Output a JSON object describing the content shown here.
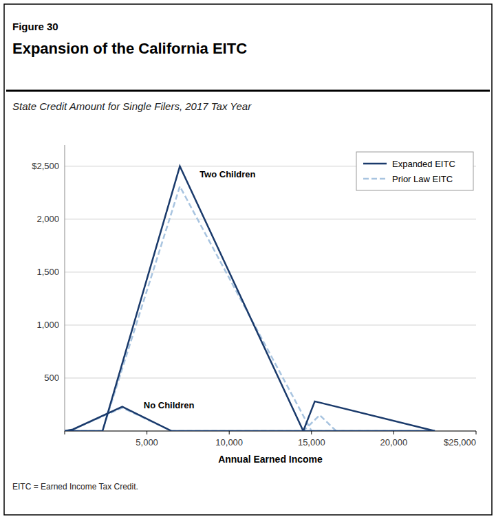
{
  "chart_data": {
    "type": "line",
    "figure_label": "Figure 30",
    "title": "Expansion of the California EITC",
    "subtitle": "State Credit Amount for Single Filers, 2017 Tax Year",
    "xlabel": "Annual Earned Income",
    "footnote": "EITC = Earned Income Tax Credit.",
    "series": [
      {
        "name": "Expanded EITC",
        "color": "#1a3a6b",
        "line_style": "solid",
        "x": [
          0,
          2300,
          7000,
          14500,
          22500
        ],
        "values": [
          0,
          0,
          2500,
          0,
          0
        ]
      },
      {
        "name": "Prior Law EITC",
        "color": "#a8c4e0",
        "line_style": "dashed",
        "x": [
          0,
          2300,
          7000,
          15000,
          22500
        ],
        "values": [
          0,
          0,
          2310,
          0,
          0
        ]
      },
      {
        "name": "Expanded EITC",
        "color": "#1a3a6b",
        "line_style": "solid",
        "x": [
          0,
          500,
          3500,
          6500,
          14500,
          15200,
          22500
        ],
        "values": [
          0,
          15,
          230,
          0,
          0,
          280,
          0
        ]
      },
      {
        "name": "Prior Law EITC",
        "color": "#a8c4e0",
        "line_style": "dashed",
        "x": [
          0,
          500,
          3500,
          6500,
          14500,
          15500,
          16500,
          22500
        ],
        "values": [
          0,
          15,
          220,
          0,
          0,
          150,
          0,
          0
        ]
      }
    ],
    "annotations": [
      {
        "text": "Two Children",
        "x": 8200,
        "y": 2430
      },
      {
        "text": "No Children",
        "x": 4800,
        "y": 248
      }
    ],
    "xlim": [
      0,
      25000
    ],
    "ylim": [
      0,
      2700
    ],
    "xticks": [
      {
        "value": 0,
        "label": null
      },
      {
        "value": 5000,
        "label": "5,000"
      },
      {
        "value": 10000,
        "label": "10,000"
      },
      {
        "value": 15000,
        "label": "15,000"
      },
      {
        "value": 20000,
        "label": "20,000"
      },
      {
        "value": 25000,
        "label": "$25,000"
      }
    ],
    "yticks": [
      {
        "value": 0,
        "label": null
      },
      500,
      {
        "value": 1000,
        "label": "1,000"
      },
      {
        "value": 1500,
        "label": "1,500"
      },
      {
        "value": 2000,
        "label": "2,000"
      },
      {
        "value": 2500,
        "label": "$2,500"
      }
    ],
    "grid": "y",
    "legend": "upper right"
  }
}
